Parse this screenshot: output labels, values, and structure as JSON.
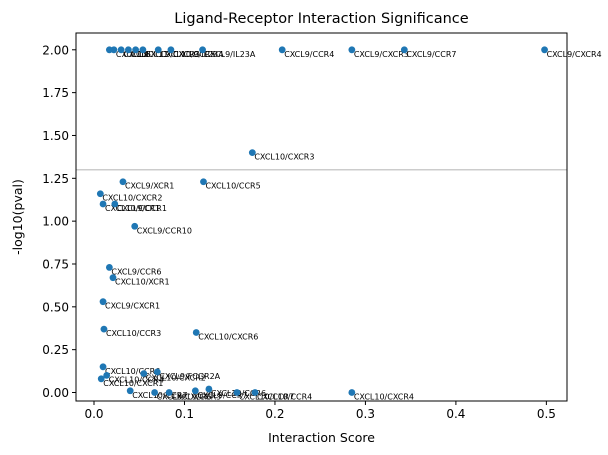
{
  "chart_data": {
    "type": "scatter",
    "title": "Ligand-Receptor Interaction Significance",
    "xlabel": "Interaction Score",
    "ylabel": "-log10(pval)",
    "xlim": [
      -0.0199,
      0.5228
    ],
    "ylim": [
      -0.0496,
      2.098
    ],
    "xticks": [
      0.0,
      0.1,
      0.2,
      0.3,
      0.4,
      0.5
    ],
    "xtick_labels": [
      "0.0",
      "0.1",
      "0.2",
      "0.3",
      "0.4",
      "0.5"
    ],
    "yticks": [
      0.0,
      0.25,
      0.5,
      0.75,
      1.0,
      1.25,
      1.5,
      1.75,
      2.0
    ],
    "ytick_labels": [
      "0.00",
      "0.25",
      "0.50",
      "0.75",
      "1.00",
      "1.25",
      "1.50",
      "1.75",
      "2.00"
    ],
    "threshold": 1.3,
    "threshold_color": "#cccccc",
    "marker_color": "#1f77b4",
    "points": [
      {
        "x": 0.017,
        "y": 2.0,
        "label": ""
      },
      {
        "x": 0.022,
        "y": 2.0,
        "label": "CXCL10"
      },
      {
        "x": 0.03,
        "y": 2.0,
        "label": "CXCL9"
      },
      {
        "x": 0.038,
        "y": 2.0,
        "label": "CCL5"
      },
      {
        "x": 0.046,
        "y": 2.0,
        "label": "CXCL11"
      },
      {
        "x": 0.054,
        "y": 2.0,
        "label": "CXCL9/CXCR3"
      },
      {
        "x": 0.071,
        "y": 2.0,
        "label": "CXCL10/CCR5"
      },
      {
        "x": 0.085,
        "y": 2.0,
        "label": "CXCL9/IL23A"
      },
      {
        "x": 0.12,
        "y": 2.0,
        "label": "CXCL9/IL23A"
      },
      {
        "x": 0.208,
        "y": 2.0,
        "label": "CXCL9/CCR4"
      },
      {
        "x": 0.285,
        "y": 2.0,
        "label": "CXCL9/CXCR3"
      },
      {
        "x": 0.343,
        "y": 2.0,
        "label": "CXCL9/CCR7"
      },
      {
        "x": 0.498,
        "y": 2.0,
        "label": "CXCL9/CXCR4"
      },
      {
        "x": 0.175,
        "y": 1.4,
        "label": "CXCL10/CXCR3"
      },
      {
        "x": 0.032,
        "y": 1.23,
        "label": "CXCL9/XCR1"
      },
      {
        "x": 0.121,
        "y": 1.23,
        "label": "CXCL10/CCR5"
      },
      {
        "x": 0.007,
        "y": 1.16,
        "label": "CXCL10/CXCR2"
      },
      {
        "x": 0.01,
        "y": 1.1,
        "label": "CXCL10/CCR1"
      },
      {
        "x": 0.023,
        "y": 1.1,
        "label": "CXCL9/CCR1"
      },
      {
        "x": 0.045,
        "y": 0.97,
        "label": "CXCL9/CCR10"
      },
      {
        "x": 0.017,
        "y": 0.73,
        "label": "CXCL9/CCR6"
      },
      {
        "x": 0.021,
        "y": 0.67,
        "label": "CXCL10/XCR1"
      },
      {
        "x": 0.01,
        "y": 0.53,
        "label": "CXCL9/CXCR1"
      },
      {
        "x": 0.011,
        "y": 0.37,
        "label": "CXCL10/CCR3"
      },
      {
        "x": 0.113,
        "y": 0.35,
        "label": "CXCL10/CXCR6"
      },
      {
        "x": 0.01,
        "y": 0.15,
        "label": "CXCL10/CCR6"
      },
      {
        "x": 0.055,
        "y": 0.11,
        "label": "CXCL10/CXCR2"
      },
      {
        "x": 0.07,
        "y": 0.12,
        "label": "CXCL9/FCGR2A"
      },
      {
        "x": 0.008,
        "y": 0.08,
        "label": "CXCL10/CXCR1"
      },
      {
        "x": 0.014,
        "y": 0.1,
        "label": "CXCL10/CCR4"
      },
      {
        "x": 0.04,
        "y": 0.01,
        "label": "CXCL10/CCR7"
      },
      {
        "x": 0.067,
        "y": 0.0,
        "label": "CXCL9/CXCR6"
      },
      {
        "x": 0.083,
        "y": 0.0,
        "label": "CXCL9/CCR3"
      },
      {
        "x": 0.112,
        "y": 0.01,
        "label": "CXCL9/CCR7"
      },
      {
        "x": 0.127,
        "y": 0.02,
        "label": "CXCL10/CCR6"
      },
      {
        "x": 0.158,
        "y": 0.0,
        "label": "CXCL10/CCR7"
      },
      {
        "x": 0.178,
        "y": 0.0,
        "label": "CXCL10/CCR4"
      },
      {
        "x": 0.285,
        "y": 0.0,
        "label": "CXCL10/CXCR4"
      }
    ]
  }
}
